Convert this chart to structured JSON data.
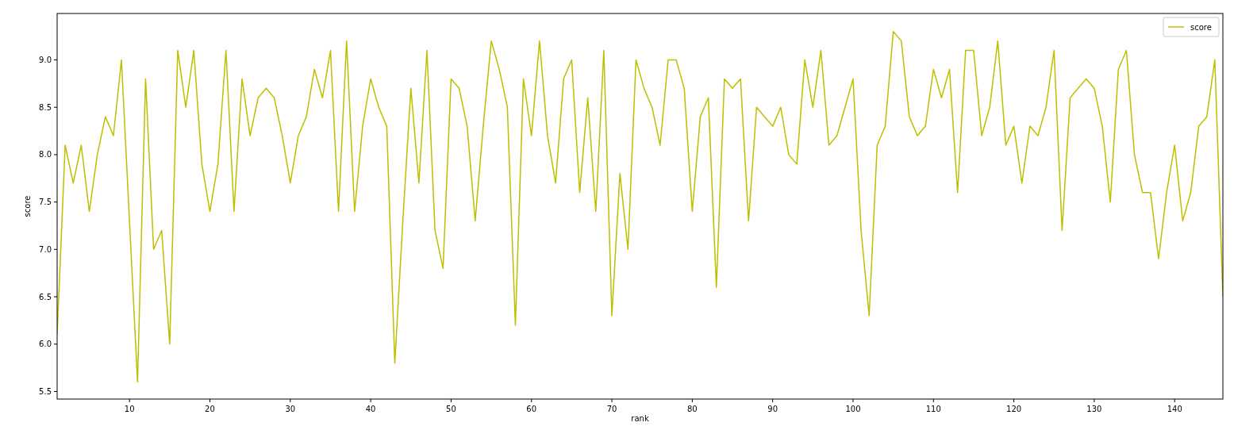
{
  "chart_data": {
    "type": "line",
    "xlabel": "rank",
    "ylabel": "score",
    "legend": "top right",
    "grid": false,
    "x": [
      1,
      2,
      3,
      4,
      5,
      6,
      7,
      8,
      9,
      10,
      11,
      12,
      13,
      14,
      15,
      16,
      17,
      18,
      19,
      20,
      21,
      22,
      23,
      24,
      25,
      26,
      27,
      28,
      29,
      30,
      31,
      32,
      33,
      34,
      35,
      36,
      37,
      38,
      39,
      40,
      41,
      42,
      43,
      44,
      45,
      46,
      47,
      48,
      49,
      50,
      51,
      52,
      53,
      54,
      55,
      56,
      57,
      58,
      59,
      60,
      61,
      62,
      63,
      64,
      65,
      66,
      67,
      68,
      69,
      70,
      71,
      72,
      73,
      74,
      75,
      76,
      77,
      78,
      79,
      80,
      81,
      82,
      83,
      84,
      85,
      86,
      87,
      88,
      89,
      90,
      91,
      92,
      93,
      94,
      95,
      96,
      97,
      98,
      99,
      100,
      101,
      102,
      103,
      104,
      105,
      106,
      107,
      108,
      109,
      110,
      111,
      112,
      113,
      114,
      115,
      116,
      117,
      118,
      119,
      120,
      121,
      122,
      123,
      124,
      125,
      126,
      127,
      128,
      129,
      130,
      131,
      132,
      133,
      134,
      135,
      136,
      137,
      138,
      139,
      140,
      141,
      142,
      143,
      144,
      145,
      146
    ],
    "series": [
      {
        "name": "score",
        "color": "#bfbf00",
        "values": [
          6.1,
          8.1,
          7.7,
          8.1,
          7.4,
          8.0,
          8.4,
          8.2,
          9.0,
          7.3,
          5.6,
          8.8,
          7.0,
          7.2,
          6.0,
          9.1,
          8.5,
          9.1,
          7.9,
          7.4,
          7.9,
          9.1,
          7.4,
          8.8,
          8.2,
          8.6,
          8.7,
          8.6,
          8.2,
          7.7,
          8.2,
          8.4,
          8.9,
          8.6,
          9.1,
          7.4,
          9.2,
          7.4,
          8.3,
          8.8,
          8.5,
          8.3,
          5.8,
          7.3,
          8.7,
          7.7,
          9.1,
          7.2,
          6.8,
          8.8,
          8.7,
          8.3,
          7.3,
          8.3,
          9.2,
          8.9,
          8.5,
          6.2,
          8.8,
          8.2,
          9.2,
          8.2,
          7.7,
          8.8,
          9.0,
          7.6,
          8.6,
          7.4,
          9.1,
          6.3,
          7.8,
          7.0,
          9.0,
          8.7,
          8.5,
          8.1,
          9.0,
          9.0,
          8.7,
          7.4,
          8.4,
          8.6,
          6.6,
          8.8,
          8.7,
          8.8,
          7.3,
          8.5,
          8.4,
          8.3,
          8.5,
          8.0,
          7.9,
          9.0,
          8.5,
          9.1,
          8.1,
          8.2,
          8.5,
          8.8,
          7.2,
          6.3,
          8.1,
          8.3,
          9.3,
          9.2,
          8.4,
          8.2,
          8.3,
          8.9,
          8.6,
          8.9,
          7.6,
          9.1,
          9.1,
          8.2,
          8.5,
          9.2,
          8.1,
          8.3,
          7.7,
          8.3,
          8.2,
          8.5,
          9.1,
          7.2,
          8.6,
          8.7,
          8.8,
          8.7,
          8.3,
          7.5,
          8.9,
          9.1,
          8.0,
          7.6,
          7.6,
          6.9,
          7.6,
          8.1,
          7.3,
          7.6,
          8.3,
          8.4,
          9.0,
          6.5
        ]
      }
    ],
    "xlim": [
      1,
      146
    ],
    "xticks": [
      10,
      20,
      30,
      40,
      50,
      60,
      70,
      80,
      90,
      100,
      110,
      120,
      130,
      140
    ],
    "ylim": [
      5.42,
      9.49
    ],
    "yticks": [
      {
        "value": 5.5,
        "label": "5.5"
      },
      {
        "value": 6,
        "label": "6.0"
      },
      {
        "value": 6.5,
        "label": "6.5"
      },
      {
        "value": 7,
        "label": "7.0"
      },
      {
        "value": 7.5,
        "label": "7.5"
      },
      {
        "value": 8,
        "label": "8.0"
      },
      {
        "value": 8.5,
        "label": "8.5"
      },
      {
        "value": 9,
        "label": "9.0"
      }
    ]
  }
}
